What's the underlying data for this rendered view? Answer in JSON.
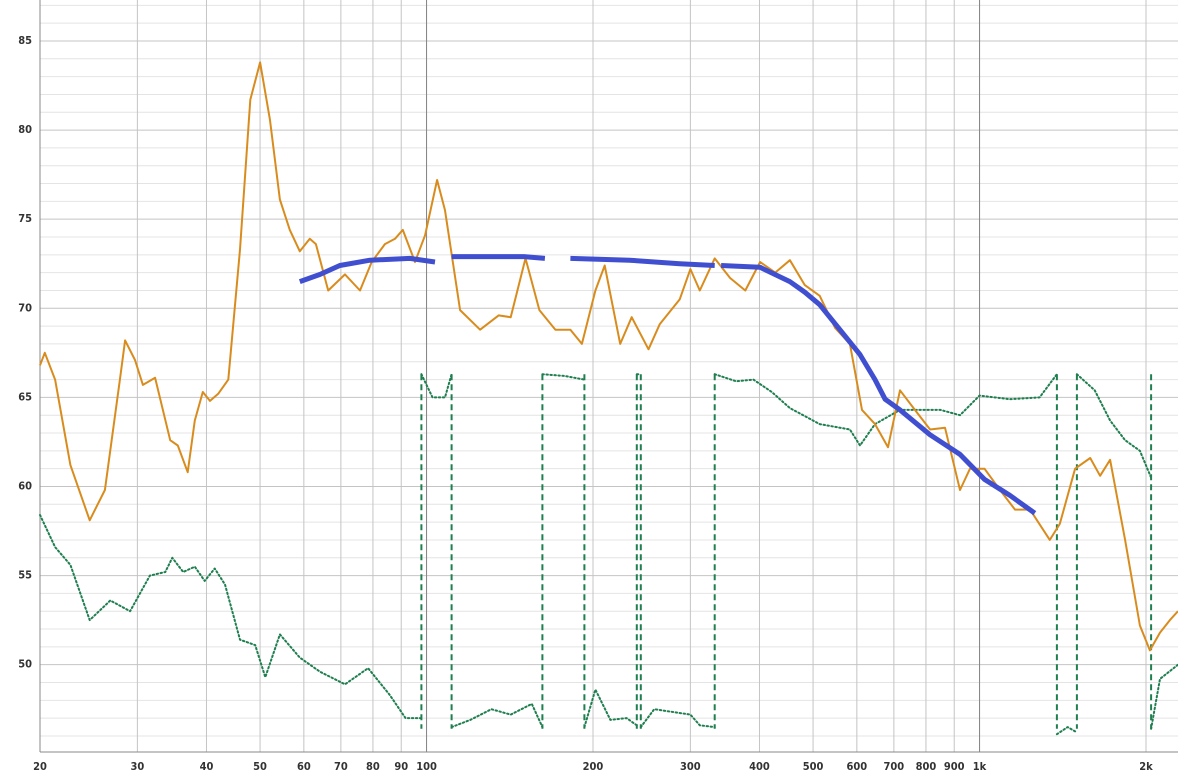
{
  "chart_data": {
    "type": "line",
    "xscale": "log",
    "xlim": [
      20,
      2285
    ],
    "ylim": [
      45.1,
      87.3
    ],
    "xticks": [
      20,
      30,
      40,
      50,
      60,
      70,
      80,
      90,
      100,
      200,
      300,
      400,
      500,
      600,
      700,
      800,
      900,
      {
        "value": 1000,
        "label": "1k"
      },
      {
        "value": 2000,
        "label": "2k"
      }
    ],
    "yticks": [
      50,
      55,
      60,
      65,
      70,
      75,
      80,
      85
    ],
    "yminorticks": [
      46,
      47,
      48,
      49,
      51,
      52,
      53,
      54,
      56,
      57,
      58,
      59,
      61,
      62,
      63,
      64,
      66,
      67,
      68,
      69,
      71,
      72,
      73,
      74,
      76,
      77,
      78,
      79,
      81,
      82,
      83,
      84,
      86,
      87
    ],
    "xgrid_dark": [
      100,
      1000
    ],
    "grid": true,
    "series": [
      {
        "color": "#d98c1e",
        "style": "solid",
        "width": 2,
        "x": [
          20,
          20.4,
          21.3,
          22.7,
          24.6,
          26.2,
          27.9,
          28.5,
          29.7,
          30.7,
          32.3,
          34.4,
          35.5,
          37.0,
          38.1,
          39.4,
          40.6,
          42.0,
          43.8,
          46.0,
          48.0,
          50.0,
          52.1,
          54.3,
          56.6,
          59.0,
          61.5,
          63.1,
          66.4,
          71.2,
          75.8,
          79.6,
          84.1,
          87.7,
          90.6,
          95.3,
          99.4,
          104.5,
          108,
          115,
          125,
          135,
          142,
          151,
          160,
          171,
          182,
          191,
          202,
          210,
          224,
          235,
          252,
          264,
          287,
          300,
          312,
          332,
          354,
          377,
          401,
          427,
          454,
          483,
          514,
          548,
          583,
          613,
          647,
          683,
          718,
          764,
          814,
          866,
          922,
          961,
          1021,
          1089,
          1159,
          1234,
          1340,
          1397,
          1489,
          1585,
          1652,
          1722,
          1833,
          1950,
          2033,
          2120,
          2209,
          2285
        ],
        "values": [
          66.8,
          67.5,
          66.0,
          61.2,
          58.1,
          59.8,
          66.0,
          68.2,
          67.1,
          65.7,
          66.1,
          62.6,
          62.3,
          60.8,
          63.7,
          65.3,
          64.8,
          65.2,
          66.0,
          73.3,
          81.7,
          83.8,
          80.6,
          76.1,
          74.4,
          73.2,
          73.9,
          73.6,
          71.0,
          71.9,
          71.0,
          72.6,
          73.6,
          73.9,
          74.4,
          72.6,
          74.1,
          77.2,
          75.5,
          69.9,
          68.8,
          69.6,
          69.5,
          72.8,
          69.9,
          68.8,
          68.8,
          68.0,
          71.0,
          72.4,
          68.0,
          69.5,
          67.7,
          69.1,
          70.5,
          72.2,
          71.0,
          72.8,
          71.7,
          71.0,
          72.6,
          72.0,
          72.7,
          71.3,
          70.7,
          68.9,
          68.0,
          64.3,
          63.5,
          62.2,
          65.4,
          64.3,
          63.2,
          63.3,
          59.8,
          61.0,
          61.0,
          59.8,
          58.7,
          58.7,
          57.0,
          57.9,
          61.0,
          61.6,
          60.6,
          61.5,
          57.0,
          52.2,
          50.8,
          51.8,
          52.5,
          53.0
        ]
      },
      {
        "color": "#3f4fcf",
        "style": "solid",
        "width": 5,
        "x": [
          59,
          64.2,
          69.7,
          79,
          93.3,
          103.6,
          null,
          111,
          130,
          150,
          163.7,
          null,
          182,
          233,
          287,
          332,
          null,
          341,
          401,
          454,
          483,
          514,
          559,
          608,
          647,
          675,
          718,
          814,
          922,
          1021,
          1135,
          1259
        ],
        "values": [
          71.5,
          71.9,
          72.4,
          72.7,
          72.8,
          72.6,
          null,
          72.9,
          72.9,
          72.9,
          72.8,
          null,
          72.8,
          72.7,
          72.5,
          72.4,
          null,
          72.4,
          72.3,
          71.5,
          70.9,
          70.2,
          68.8,
          67.4,
          66.0,
          64.9,
          64.3,
          62.9,
          61.8,
          60.4,
          59.5,
          58.5
        ]
      },
      {
        "color": "#1f7f4f",
        "style": "dotted",
        "width": 2,
        "x": [
          20,
          21.3,
          22.7,
          24.6,
          26.8,
          29.1,
          31.6,
          33.7,
          34.7,
          36.3,
          38.1,
          39.7,
          41.4,
          43.2,
          46,
          49,
          51.1,
          54.3,
          59,
          64.2,
          71.2,
          78.4,
          85.8,
          91.6,
          97.3,
          null,
          97.9,
          102.5,
          108,
          111,
          null,
          111,
          120,
          131,
          142,
          155,
          162,
          null,
          162,
          178,
          193,
          null,
          193,
          202,
          215,
          230,
          240,
          null,
          240,
          244,
          null,
          244,
          258,
          300,
          312,
          332,
          null,
          332,
          363,
          390,
          421,
          454,
          514,
          583,
          608,
          647,
          718,
          850,
          922,
          1000,
          1135,
          1284,
          1380,
          null,
          1380,
          1443,
          1500,
          null,
          1500,
          1615,
          1722,
          1833,
          1950,
          2043,
          null,
          2043,
          2120,
          2285
        ],
        "values": [
          58.4,
          56.6,
          55.6,
          52.5,
          53.6,
          53.0,
          55.0,
          55.2,
          56.0,
          55.2,
          55.5,
          54.7,
          55.4,
          54.5,
          51.4,
          51.1,
          49.3,
          51.7,
          50.4,
          49.6,
          48.9,
          49.8,
          48.3,
          47.0,
          47.0,
          null,
          66.3,
          65.0,
          65.0,
          66.3,
          null,
          46.5,
          46.9,
          47.5,
          47.2,
          47.8,
          46.5,
          null,
          66.3,
          66.2,
          66.0,
          null,
          46.5,
          48.6,
          46.9,
          47.0,
          46.6,
          null,
          66.3,
          66.3,
          null,
          46.5,
          47.5,
          47.2,
          46.6,
          46.5,
          null,
          66.3,
          65.9,
          66.0,
          65.3,
          64.4,
          63.5,
          63.2,
          62.3,
          63.5,
          64.3,
          64.3,
          64.0,
          65.1,
          64.9,
          65.0,
          66.3,
          null,
          46.1,
          46.5,
          46.2,
          null,
          66.3,
          65.4,
          63.7,
          62.6,
          62.0,
          60.5,
          null,
          46.4,
          49.2,
          50.0
        ]
      },
      {
        "color": "#1f7f4f",
        "style": "dashed",
        "width": 2,
        "x": [
          97.9,
          97.9,
          null,
          111,
          111,
          null,
          162,
          162,
          null,
          193,
          193,
          null,
          240,
          240,
          null,
          244,
          244,
          null,
          332,
          332,
          null,
          1380,
          1380,
          null,
          1500,
          1500,
          null,
          2043,
          2043
        ],
        "values": [
          66.3,
          46.4,
          null,
          66.3,
          46.4,
          null,
          66.3,
          46.4,
          null,
          66.3,
          46.4,
          null,
          66.3,
          46.4,
          null,
          66.3,
          46.4,
          null,
          66.3,
          46.4,
          null,
          66.3,
          46.4,
          null,
          66.3,
          46.4,
          null,
          66.3,
          46.4
        ]
      }
    ]
  }
}
